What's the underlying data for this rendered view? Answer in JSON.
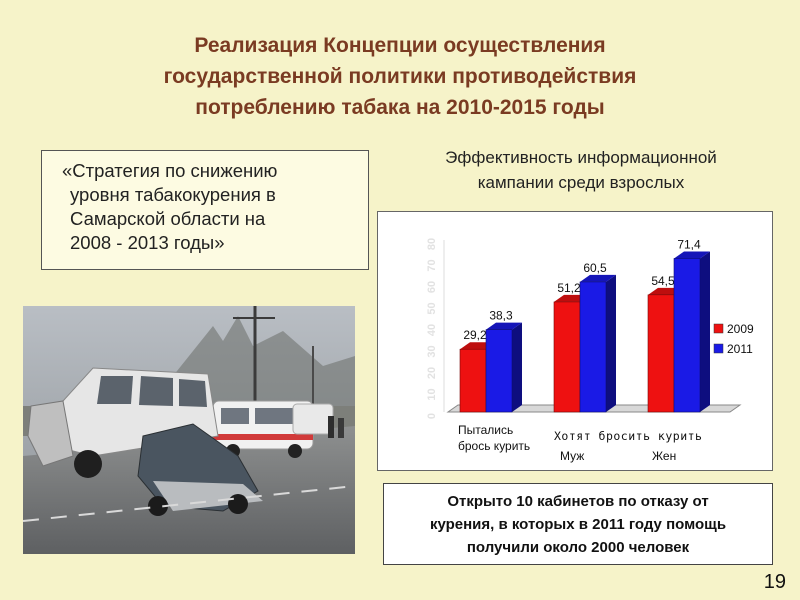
{
  "slide": {
    "title_lines": [
      "Реализация Концепции осуществления",
      "государственной политики противодействия",
      "потреблению табака на 2010-2015 годы"
    ],
    "quote_lines": [
      "«Стратегия по снижению",
      "уровня табакокурения в",
      "Самарской области на",
      "2008 - 2013 годы»"
    ],
    "info_lines": [
      "Открыто 10 кабинетов по отказу от",
      "курения, в которых в 2011 году помощь",
      "получили около 2000 человек"
    ],
    "page_number": "19"
  },
  "chart_data": {
    "type": "bar",
    "title_lines": [
      "Эффективность информационной",
      "кампании среди взрослых"
    ],
    "categories": [
      "Пытались бросить курить",
      "Муж",
      "Жен"
    ],
    "category_label_lines": [
      [
        "Пытались",
        "брось курить"
      ],
      [
        "Муж"
      ],
      [
        "Жен"
      ]
    ],
    "group_label": "Хотят бросить курить",
    "series": [
      {
        "name": "2009",
        "color": "#ee1111",
        "values": [
          29.2,
          51.2,
          54.5
        ]
      },
      {
        "name": "2011",
        "color": "#1a1ae6",
        "values": [
          38.3,
          60.5,
          71.4
        ]
      }
    ],
    "value_labels": {
      "2009": [
        "29,2",
        "51,2",
        "54,5"
      ],
      "2011": [
        "38,3",
        "60,5",
        "71,4"
      ]
    },
    "ylim": [
      0,
      80
    ],
    "y_ticks": [
      "0",
      "10",
      "20",
      "30",
      "40",
      "50",
      "60",
      "70",
      "80"
    ],
    "legend_position": "right",
    "grid": false
  }
}
